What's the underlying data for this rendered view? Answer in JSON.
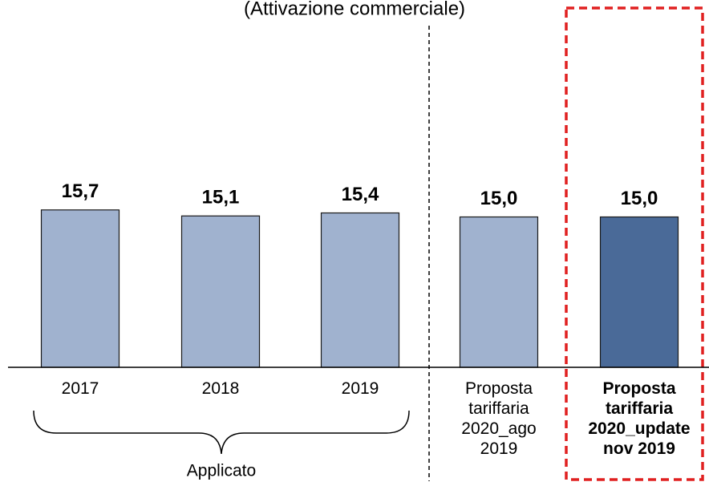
{
  "chart_data": {
    "type": "bar",
    "subtitle": "(Attivazione commerciale)",
    "categories": [
      "2017",
      "2018",
      "2019",
      "Proposta\ntariffaria\n2020_ago\n2019",
      "Proposta\ntariffaria\n2020_update\nnov 2019"
    ],
    "values": [
      15.7,
      15.1,
      15.4,
      15.0,
      15.0
    ],
    "value_labels": [
      "15,7",
      "15,1",
      "15,4",
      "15,0",
      "15,0"
    ],
    "colors": [
      "#a0b2cf",
      "#a0b2cf",
      "#a0b2cf",
      "#a0b2cf",
      "#4a6a98"
    ],
    "highlight": 4,
    "group_label": "Applicato"
  }
}
